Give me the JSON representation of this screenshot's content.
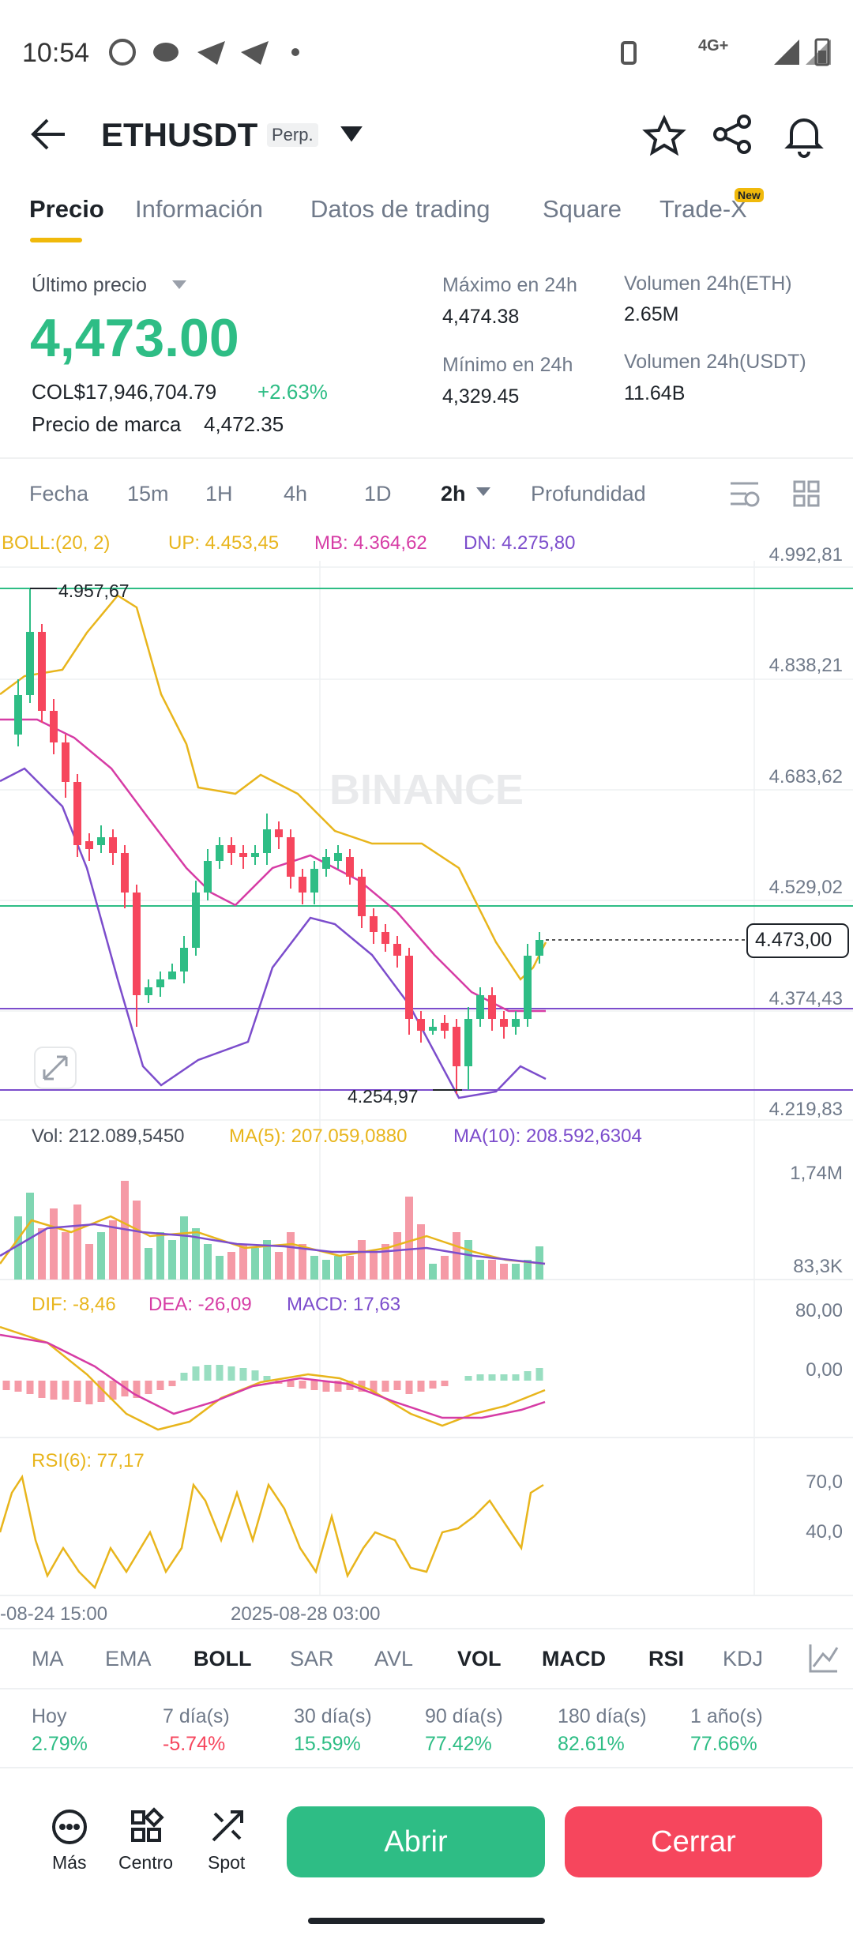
{
  "status": {
    "time": "10:54",
    "network": "4G+"
  },
  "header": {
    "symbol": "ETHUSDT",
    "badge": "Perp."
  },
  "tabs": {
    "items": [
      "Precio",
      "Información",
      "Datos de trading",
      "Square",
      "Trade-X"
    ],
    "new_badge": "New"
  },
  "price": {
    "label": "Último precio",
    "last": "4,473.00",
    "fiat": "COL$17,946,704.79",
    "change": "+2.63%",
    "mark_label": "Precio de marca",
    "mark": "4,472.35"
  },
  "stats": [
    {
      "label": "Máximo en 24h",
      "value": "4,474.38"
    },
    {
      "label": "Volumen 24h(ETH)",
      "value": "2.65M"
    },
    {
      "label": "Mínimo en 24h",
      "value": "4,329.45"
    },
    {
      "label": "Volumen 24h(USDT)",
      "value": "11.64B"
    }
  ],
  "intervals": [
    "Fecha",
    "15m",
    "1H",
    "4h",
    "1D",
    "2h",
    "Profundidad"
  ],
  "chart": {
    "boll": [
      "BOLL:(20, 2)",
      "UP: 4.453,45",
      "MB: 4.364,62",
      "DN: 4.275,80"
    ],
    "price_axis": [
      "4.992,81",
      "4.838,21",
      "4.683,62",
      "4.529,02",
      "4.374,43",
      "4.219,83"
    ],
    "high_label": "4.957,67",
    "low_label": "4.254,97",
    "current": "4.473,00",
    "watermark": "BINANCE"
  },
  "volume": {
    "labels": [
      "Vol: 212.089,5450",
      "MA(5): 207.059,0880",
      "MA(10): 208.592,6304"
    ],
    "axis": [
      "1,74M",
      "83,3K"
    ]
  },
  "macd": {
    "labels": [
      "DIF: -8,46",
      "DEA: -26,09",
      "MACD: 17,63"
    ],
    "axis": [
      "80,00",
      "0,00"
    ]
  },
  "rsi": {
    "label": "RSI(6): 77,17",
    "axis": [
      "70,0",
      "40,0"
    ]
  },
  "time_axis": [
    "-08-24 15:00",
    "2025-08-28 03:00"
  ],
  "indicators": [
    "MA",
    "EMA",
    "BOLL",
    "SAR",
    "AVL",
    "VOL",
    "MACD",
    "RSI",
    "KDJ"
  ],
  "performance": [
    {
      "period": "Hoy",
      "value": "2.79%"
    },
    {
      "period": "7 día(s)",
      "value": "-5.74%"
    },
    {
      "period": "30 día(s)",
      "value": "15.59%"
    },
    {
      "period": "90 día(s)",
      "value": "77.42%"
    },
    {
      "period": "180 día(s)",
      "value": "82.61%"
    },
    {
      "period": "1 año(s)",
      "value": "77.66%"
    }
  ],
  "actions": [
    "Más",
    "Centro",
    "Spot"
  ],
  "buttons": {
    "open": "Abrir",
    "close": "Cerrar"
  }
}
